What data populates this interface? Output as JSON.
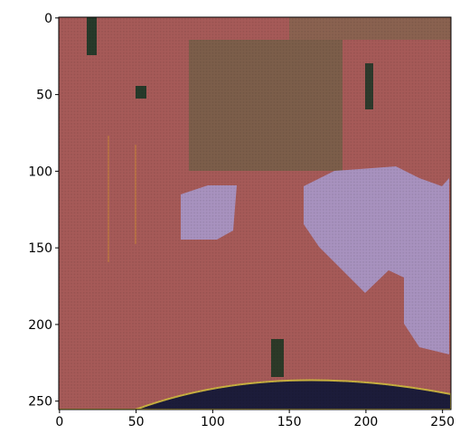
{
  "chart_data": {
    "type": "image",
    "xlim": [
      -0.5,
      255.5
    ],
    "ylim": [
      255.5,
      -0.5
    ],
    "xticks": [
      0,
      50,
      100,
      150,
      200,
      250
    ],
    "yticks": [
      0,
      50,
      100,
      150,
      200,
      250
    ]
  }
}
